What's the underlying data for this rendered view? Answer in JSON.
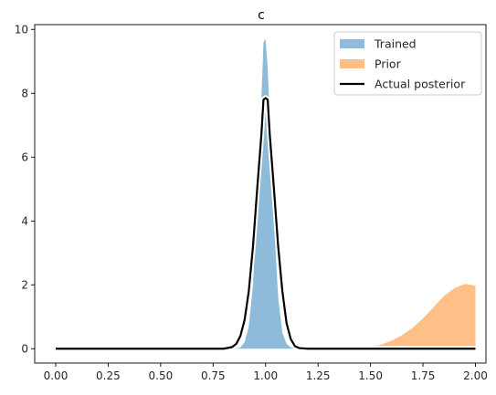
{
  "chart_data": {
    "type": "area",
    "title": "c",
    "xlabel": "",
    "ylabel": "",
    "xlim": [
      -0.1,
      2.05
    ],
    "ylim": [
      -0.45,
      10.15
    ],
    "xticks": [
      "0.00",
      "0.25",
      "0.50",
      "0.75",
      "1.00",
      "1.25",
      "1.50",
      "1.75",
      "2.00"
    ],
    "yticks": [
      "0",
      "2",
      "4",
      "6",
      "8",
      "10"
    ],
    "grid": false,
    "legend_position": "top-right",
    "series": [
      {
        "name": "Trained",
        "kind": "filled-area",
        "color": "#8fbbda",
        "x": [
          0.0,
          0.85,
          0.88,
          0.9,
          0.92,
          0.94,
          0.96,
          0.98,
          0.99,
          1.0,
          1.01,
          1.02,
          1.04,
          1.06,
          1.08,
          1.1,
          1.12,
          1.14,
          1.16,
          2.0
        ],
        "y": [
          0.0,
          0.0,
          0.04,
          0.2,
          0.7,
          2.0,
          4.5,
          7.8,
          9.6,
          9.7,
          8.8,
          7.2,
          4.0,
          1.6,
          0.5,
          0.15,
          0.04,
          0.01,
          0.0,
          0.0
        ]
      },
      {
        "name": "Prior",
        "kind": "filled-area",
        "color": "#ffbf86",
        "x": [
          0.0,
          1.3,
          1.4,
          1.5,
          1.55,
          1.6,
          1.65,
          1.7,
          1.75,
          1.8,
          1.85,
          1.9,
          1.95,
          1.98,
          2.0
        ],
        "y": [
          0.0,
          0.0,
          0.01,
          0.06,
          0.13,
          0.25,
          0.42,
          0.65,
          0.95,
          1.3,
          1.65,
          1.9,
          2.03,
          2.0,
          1.97
        ]
      },
      {
        "name": "Actual posterior",
        "kind": "line",
        "color": "#000000",
        "x": [
          0.0,
          0.8,
          0.84,
          0.86,
          0.88,
          0.9,
          0.92,
          0.94,
          0.96,
          0.98,
          0.99,
          1.0,
          1.01,
          1.02,
          1.04,
          1.06,
          1.08,
          1.1,
          1.12,
          1.14,
          1.16,
          1.2,
          2.0
        ],
        "y": [
          0.0,
          0.0,
          0.05,
          0.15,
          0.4,
          0.9,
          1.8,
          3.2,
          5.0,
          6.7,
          7.8,
          7.85,
          7.8,
          6.7,
          5.0,
          3.2,
          1.8,
          0.8,
          0.3,
          0.08,
          0.02,
          0.0,
          0.0
        ]
      }
    ]
  }
}
